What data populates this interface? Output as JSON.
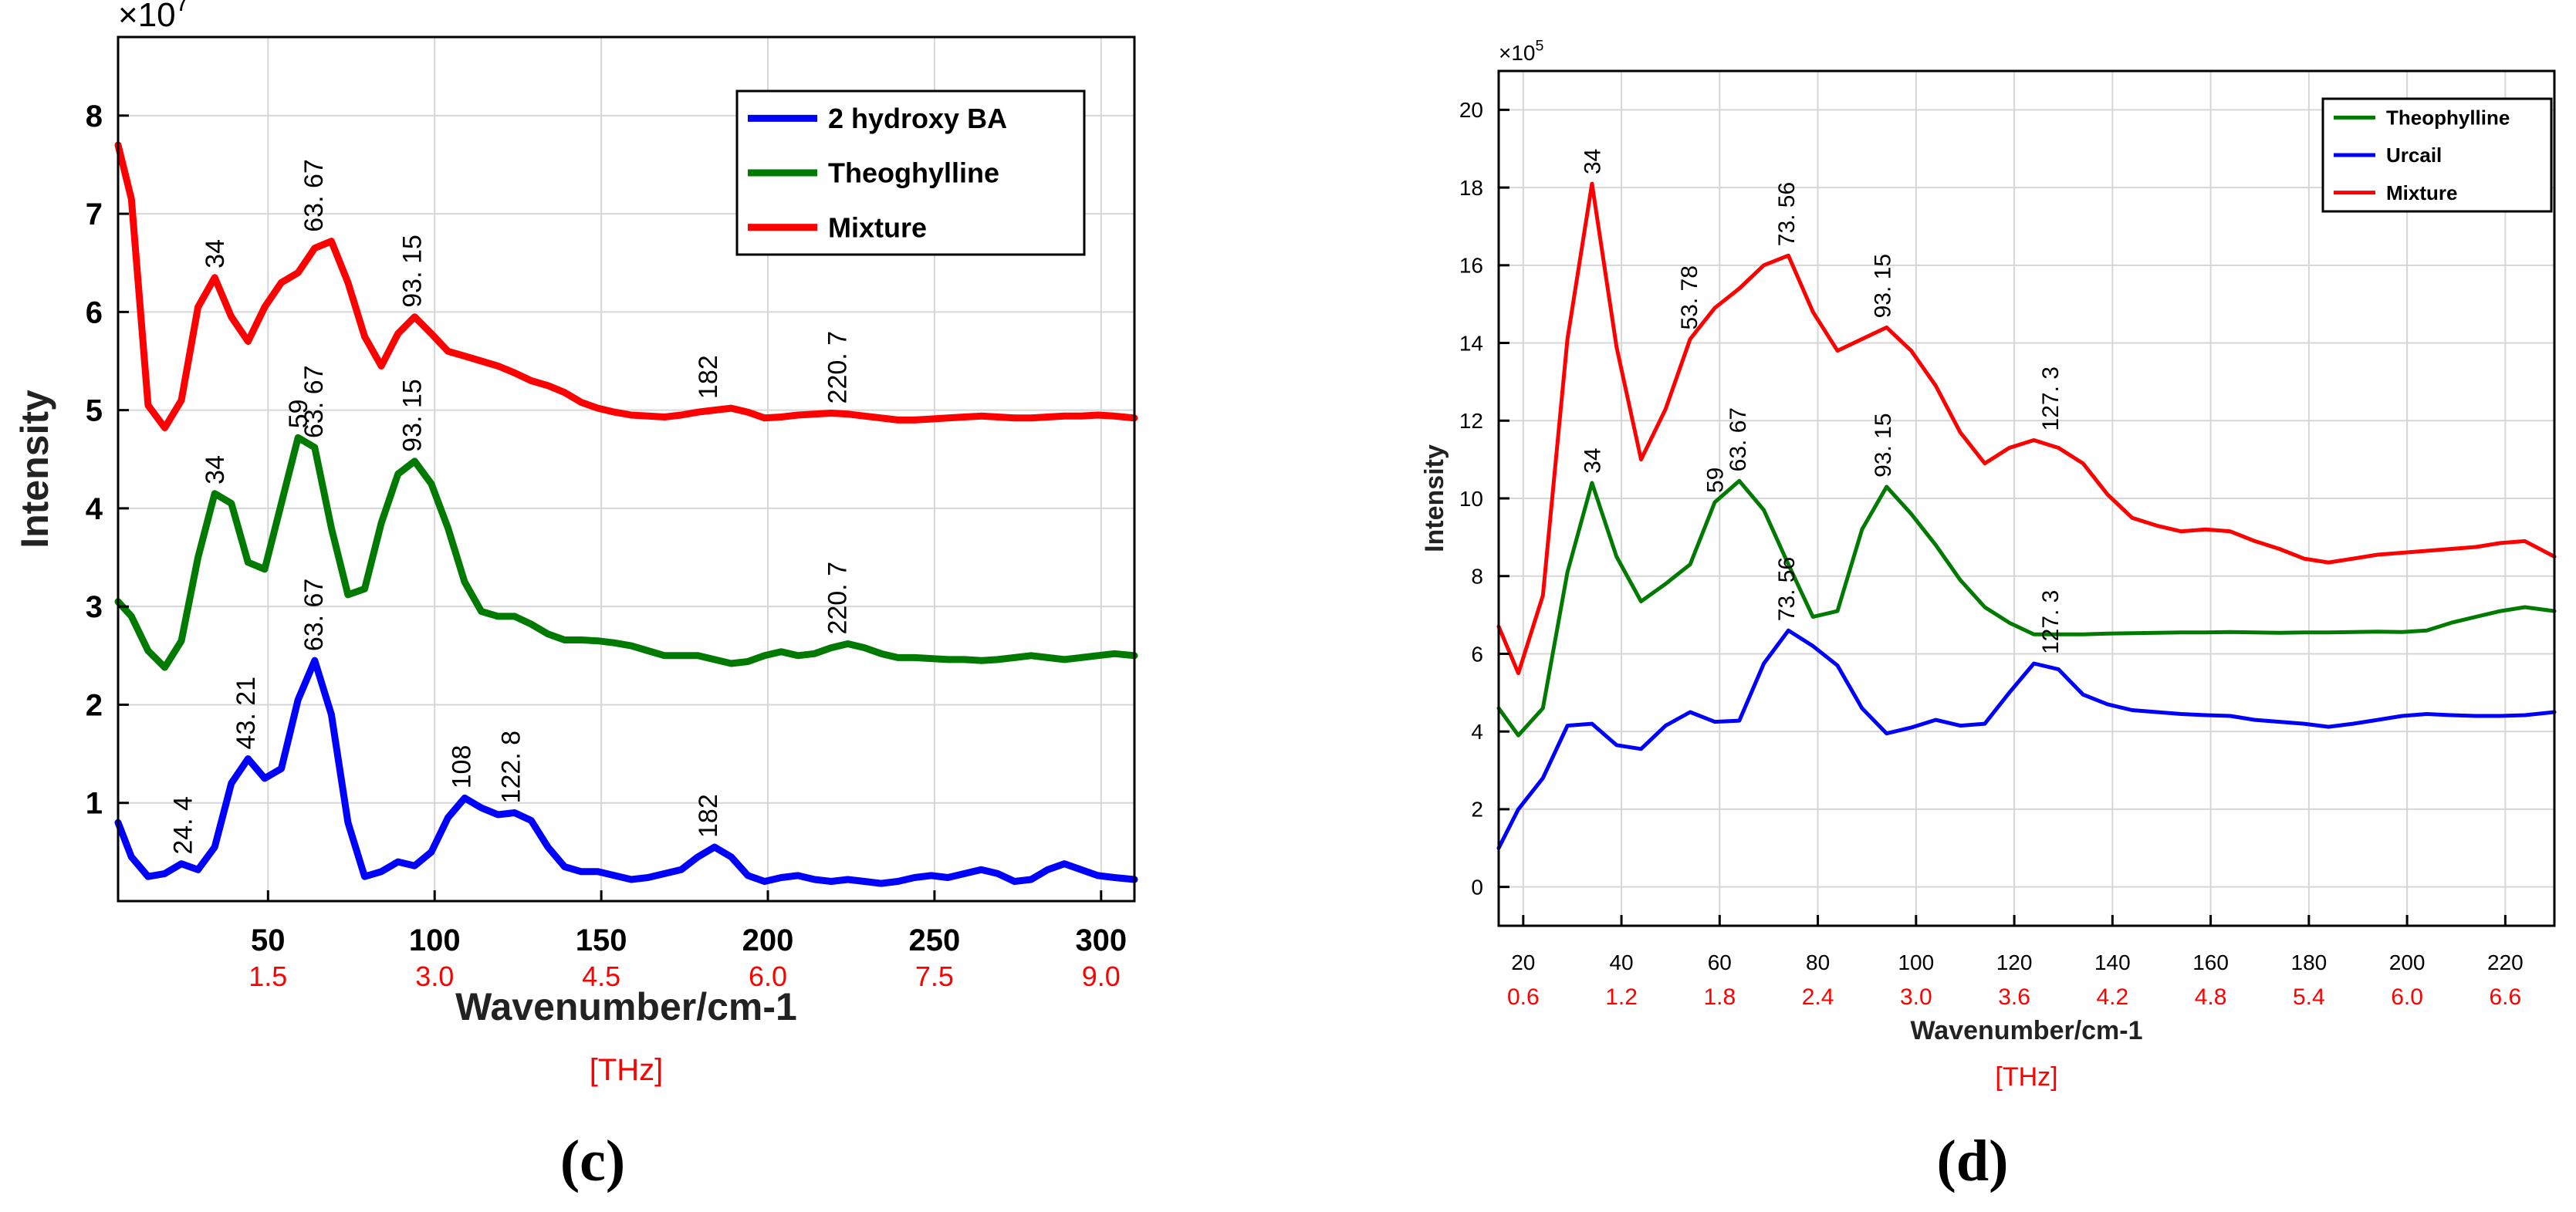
{
  "figure": {
    "panel_c_label": "(c)",
    "panel_d_label": "(d)"
  },
  "chart_data": [
    {
      "panel": "c",
      "type": "line",
      "xlabel": "Wavenumber/cm-1",
      "ylabel": "Intensity",
      "secondary_xlabel": "[THz]",
      "y_exponent_label": "×10",
      "y_exponent": "7",
      "xlim": [
        5,
        310
      ],
      "ylim": [
        0,
        8.8
      ],
      "x_ticks": [
        50,
        100,
        150,
        200,
        250,
        300
      ],
      "x_tick_labels": [
        "50",
        "100",
        "150",
        "200",
        "250",
        "300"
      ],
      "thz_ticks": [
        50,
        100,
        150,
        200,
        250,
        300
      ],
      "thz_tick_labels": [
        "1.5",
        "3.0",
        "4.5",
        "6.0",
        "7.5",
        "9.0"
      ],
      "y_ticks": [
        1,
        2,
        3,
        4,
        5,
        6,
        7,
        8
      ],
      "y_tick_labels": [
        "1",
        "2",
        "3",
        "4",
        "5",
        "6",
        "7",
        "8"
      ],
      "grid": true,
      "legend_position": "top-right",
      "series": [
        {
          "name": "2 hydroxy BA",
          "color": "#0000ff",
          "x": [
            5,
            9,
            14,
            19,
            24,
            29,
            34,
            39,
            44,
            49,
            54,
            59,
            64,
            69,
            74,
            79,
            84,
            89,
            94,
            99,
            104,
            109,
            114,
            119,
            124,
            129,
            134,
            139,
            144,
            149,
            154,
            159,
            164,
            169,
            174,
            179,
            184,
            189,
            194,
            199,
            204,
            209,
            214,
            219,
            224,
            229,
            234,
            239,
            244,
            249,
            254,
            259,
            264,
            269,
            274,
            279,
            284,
            289,
            294,
            299,
            304,
            310
          ],
          "values": [
            0.8,
            0.45,
            0.25,
            0.28,
            0.38,
            0.32,
            0.55,
            1.2,
            1.45,
            1.25,
            1.35,
            2.05,
            2.45,
            1.9,
            0.8,
            0.25,
            0.3,
            0.4,
            0.36,
            0.5,
            0.85,
            1.05,
            0.95,
            0.88,
            0.9,
            0.82,
            0.55,
            0.35,
            0.3,
            0.3,
            0.26,
            0.22,
            0.24,
            0.28,
            0.32,
            0.45,
            0.55,
            0.45,
            0.26,
            0.2,
            0.24,
            0.26,
            0.22,
            0.2,
            0.22,
            0.2,
            0.18,
            0.2,
            0.24,
            0.26,
            0.24,
            0.28,
            0.32,
            0.28,
            0.2,
            0.22,
            0.32,
            0.38,
            0.32,
            0.26,
            0.24,
            0.22
          ]
        },
        {
          "name": "Theoghylline",
          "color": "#007a00",
          "x": [
            5,
            9,
            14,
            19,
            24,
            29,
            34,
            39,
            44,
            49,
            54,
            59,
            64,
            69,
            74,
            79,
            84,
            89,
            94,
            99,
            104,
            109,
            114,
            119,
            124,
            129,
            134,
            139,
            144,
            149,
            154,
            159,
            164,
            169,
            174,
            179,
            184,
            189,
            194,
            199,
            204,
            209,
            214,
            219,
            224,
            229,
            234,
            239,
            244,
            249,
            254,
            259,
            264,
            269,
            274,
            279,
            284,
            289,
            294,
            299,
            304,
            310
          ],
          "values": [
            3.05,
            2.9,
            2.55,
            2.38,
            2.65,
            3.5,
            4.15,
            4.05,
            3.45,
            3.38,
            4.05,
            4.72,
            4.62,
            3.8,
            3.12,
            3.18,
            3.85,
            4.35,
            4.48,
            4.25,
            3.8,
            3.25,
            2.95,
            2.9,
            2.9,
            2.82,
            2.72,
            2.66,
            2.66,
            2.65,
            2.63,
            2.6,
            2.55,
            2.5,
            2.5,
            2.5,
            2.46,
            2.42,
            2.44,
            2.5,
            2.54,
            2.5,
            2.52,
            2.58,
            2.62,
            2.58,
            2.52,
            2.48,
            2.48,
            2.47,
            2.46,
            2.46,
            2.45,
            2.46,
            2.48,
            2.5,
            2.48,
            2.46,
            2.48,
            2.5,
            2.52,
            2.5
          ]
        },
        {
          "name": "Mixture",
          "color": "#ff0000",
          "x": [
            5,
            9,
            14,
            19,
            24,
            29,
            34,
            39,
            44,
            49,
            54,
            59,
            64,
            69,
            74,
            79,
            84,
            89,
            94,
            99,
            104,
            109,
            114,
            119,
            124,
            129,
            134,
            139,
            144,
            149,
            154,
            159,
            164,
            169,
            174,
            179,
            184,
            189,
            194,
            199,
            204,
            209,
            214,
            219,
            224,
            229,
            234,
            239,
            244,
            249,
            254,
            259,
            264,
            269,
            274,
            279,
            284,
            289,
            294,
            299,
            304,
            310
          ],
          "values": [
            7.7,
            7.15,
            5.05,
            4.82,
            5.1,
            6.05,
            6.35,
            5.95,
            5.7,
            6.05,
            6.3,
            6.4,
            6.65,
            6.72,
            6.3,
            5.75,
            5.45,
            5.78,
            5.95,
            5.78,
            5.6,
            5.55,
            5.5,
            5.45,
            5.38,
            5.3,
            5.25,
            5.18,
            5.08,
            5.02,
            4.98,
            4.95,
            4.94,
            4.93,
            4.95,
            4.98,
            5.0,
            5.02,
            4.98,
            4.92,
            4.93,
            4.95,
            4.96,
            4.97,
            4.96,
            4.94,
            4.92,
            4.9,
            4.9,
            4.91,
            4.92,
            4.93,
            4.94,
            4.93,
            4.92,
            4.92,
            4.93,
            4.94,
            4.94,
            4.95,
            4.94,
            4.92
          ]
        }
      ],
      "annotations": [
        {
          "text": "24. 4",
          "x": 24.4,
          "y": 0.38
        },
        {
          "text": "43. 21",
          "x": 43.21,
          "y": 1.45
        },
        {
          "text": "63. 67",
          "x": 63.67,
          "y": 2.45
        },
        {
          "text": "108",
          "x": 108,
          "y": 1.05
        },
        {
          "text": "122. 8",
          "x": 122.8,
          "y": 0.9
        },
        {
          "text": "182",
          "x": 182,
          "y": 0.55
        },
        {
          "text": "34",
          "x": 34,
          "y": 4.15
        },
        {
          "text": "59",
          "x": 59,
          "y": 4.72
        },
        {
          "text": "63. 67",
          "x": 63.67,
          "y": 4.62
        },
        {
          "text": "93. 15",
          "x": 93.15,
          "y": 4.48
        },
        {
          "text": "220. 7",
          "x": 220.7,
          "y": 2.62
        },
        {
          "text": "34",
          "x": 34,
          "y": 6.35
        },
        {
          "text": "63. 67",
          "x": 63.67,
          "y": 6.72
        },
        {
          "text": "93. 15",
          "x": 93.15,
          "y": 5.95
        },
        {
          "text": "182",
          "x": 182,
          "y": 5.02
        },
        {
          "text": "220. 7",
          "x": 220.7,
          "y": 4.97
        }
      ]
    },
    {
      "panel": "d",
      "type": "line",
      "xlabel": "Wavenumber/cm-1",
      "ylabel": "Intensity",
      "secondary_xlabel": "[THz]",
      "y_exponent_label": "×10",
      "y_exponent": "5",
      "xlim": [
        15,
        230
      ],
      "ylim": [
        -1,
        21
      ],
      "x_ticks": [
        20,
        40,
        60,
        80,
        100,
        120,
        140,
        160,
        180,
        200,
        220
      ],
      "x_tick_labels": [
        "20",
        "40",
        "60",
        "80",
        "100",
        "120",
        "140",
        "160",
        "180",
        "200",
        "220"
      ],
      "thz_ticks": [
        20,
        40,
        60,
        80,
        100,
        120,
        140,
        160,
        180,
        200,
        220
      ],
      "thz_tick_labels": [
        "0.6",
        "1.2",
        "1.8",
        "2.4",
        "3.0",
        "3.6",
        "4.2",
        "4.8",
        "5.4",
        "6.0",
        "6.6"
      ],
      "y_ticks": [
        0,
        2,
        4,
        6,
        8,
        10,
        12,
        14,
        16,
        18,
        20
      ],
      "y_tick_labels": [
        "0",
        "2",
        "4",
        "6",
        "8",
        "10",
        "12",
        "14",
        "16",
        "18",
        "20"
      ],
      "grid": true,
      "legend_position": "top-right",
      "series": [
        {
          "name": "Theophylline",
          "color": "#007a00",
          "x": [
            15,
            19,
            24,
            29,
            34,
            39,
            44,
            49,
            54,
            59,
            64,
            69,
            74,
            79,
            84,
            89,
            94,
            99,
            104,
            109,
            114,
            119,
            124,
            129,
            134,
            139,
            144,
            149,
            154,
            159,
            164,
            169,
            174,
            179,
            184,
            189,
            194,
            199,
            204,
            209,
            214,
            219,
            224,
            230
          ],
          "values": [
            4.6,
            3.9,
            4.6,
            8.1,
            10.4,
            8.5,
            7.35,
            7.8,
            8.3,
            9.9,
            10.45,
            9.7,
            8.3,
            6.95,
            7.1,
            9.2,
            10.3,
            9.6,
            8.8,
            7.9,
            7.2,
            6.8,
            6.5,
            6.5,
            6.5,
            6.52,
            6.53,
            6.54,
            6.55,
            6.55,
            6.56,
            6.55,
            6.54,
            6.55,
            6.55,
            6.56,
            6.57,
            6.56,
            6.6,
            6.8,
            6.95,
            7.1,
            7.2,
            7.1
          ]
        },
        {
          "name": "Urcail",
          "color": "#0000ff",
          "x": [
            15,
            19,
            24,
            29,
            34,
            39,
            44,
            49,
            54,
            59,
            64,
            69,
            74,
            79,
            84,
            89,
            94,
            99,
            104,
            109,
            114,
            119,
            124,
            129,
            134,
            139,
            144,
            149,
            154,
            159,
            164,
            169,
            174,
            179,
            184,
            189,
            194,
            199,
            204,
            209,
            214,
            219,
            224,
            230
          ],
          "values": [
            1.0,
            2.0,
            2.8,
            4.15,
            4.2,
            3.65,
            3.55,
            4.15,
            4.5,
            4.25,
            4.28,
            5.75,
            6.6,
            6.2,
            5.7,
            4.6,
            3.95,
            4.1,
            4.3,
            4.15,
            4.2,
            5.0,
            5.75,
            5.6,
            4.95,
            4.7,
            4.55,
            4.5,
            4.45,
            4.42,
            4.4,
            4.3,
            4.25,
            4.2,
            4.12,
            4.2,
            4.3,
            4.4,
            4.45,
            4.42,
            4.4,
            4.4,
            4.42,
            4.5
          ]
        },
        {
          "name": "Mixture",
          "color": "#ff0000",
          "x": [
            15,
            19,
            24,
            29,
            34,
            39,
            44,
            49,
            54,
            59,
            64,
            69,
            74,
            79,
            84,
            89,
            94,
            99,
            104,
            109,
            114,
            119,
            124,
            129,
            134,
            139,
            144,
            149,
            154,
            159,
            164,
            169,
            174,
            179,
            184,
            189,
            194,
            199,
            204,
            209,
            214,
            219,
            224,
            230
          ],
          "values": [
            6.7,
            5.5,
            7.5,
            14.1,
            18.1,
            13.9,
            11.0,
            12.3,
            14.1,
            14.9,
            15.4,
            16.0,
            16.25,
            14.8,
            13.8,
            14.1,
            14.4,
            13.8,
            12.9,
            11.7,
            10.9,
            11.3,
            11.5,
            11.3,
            10.9,
            10.1,
            9.5,
            9.3,
            9.15,
            9.2,
            9.15,
            8.9,
            8.7,
            8.45,
            8.35,
            8.45,
            8.55,
            8.6,
            8.65,
            8.7,
            8.75,
            8.85,
            8.9,
            8.5
          ]
        }
      ],
      "annotations": [
        {
          "text": "34",
          "x": 34,
          "y": 18.1
        },
        {
          "text": "53. 78",
          "x": 53.78,
          "y": 14.1
        },
        {
          "text": "73. 56",
          "x": 73.56,
          "y": 16.25
        },
        {
          "text": "93. 15",
          "x": 93.15,
          "y": 14.4
        },
        {
          "text": "127. 3",
          "x": 127.3,
          "y": 11.5
        },
        {
          "text": "34",
          "x": 34,
          "y": 10.4
        },
        {
          "text": "59",
          "x": 59,
          "y": 9.9
        },
        {
          "text": "63. 67",
          "x": 63.67,
          "y": 10.45
        },
        {
          "text": "93. 15",
          "x": 93.15,
          "y": 10.3
        },
        {
          "text": "73. 56",
          "x": 73.56,
          "y": 6.6
        },
        {
          "text": "127. 3",
          "x": 127.3,
          "y": 5.75
        }
      ]
    }
  ]
}
